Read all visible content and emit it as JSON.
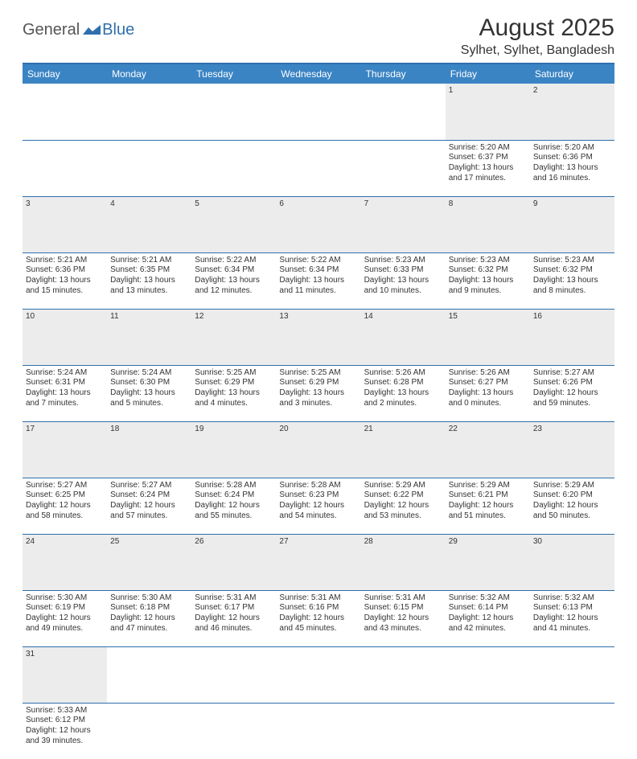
{
  "logo": {
    "part1": "General",
    "part2": "Blue"
  },
  "title": "August 2025",
  "location": "Sylhet, Sylhet, Bangladesh",
  "colors": {
    "header_bg": "#3b84c4",
    "accent_line": "#2f6fad",
    "daynum_bg": "#ececec",
    "text": "#333333"
  },
  "weekdays": [
    "Sunday",
    "Monday",
    "Tuesday",
    "Wednesday",
    "Thursday",
    "Friday",
    "Saturday"
  ],
  "weeks": [
    [
      null,
      null,
      null,
      null,
      null,
      {
        "d": "1",
        "sr": "Sunrise: 5:20 AM",
        "ss": "Sunset: 6:37 PM",
        "dl": "Daylight: 13 hours and 17 minutes."
      },
      {
        "d": "2",
        "sr": "Sunrise: 5:20 AM",
        "ss": "Sunset: 6:36 PM",
        "dl": "Daylight: 13 hours and 16 minutes."
      }
    ],
    [
      {
        "d": "3",
        "sr": "Sunrise: 5:21 AM",
        "ss": "Sunset: 6:36 PM",
        "dl": "Daylight: 13 hours and 15 minutes."
      },
      {
        "d": "4",
        "sr": "Sunrise: 5:21 AM",
        "ss": "Sunset: 6:35 PM",
        "dl": "Daylight: 13 hours and 13 minutes."
      },
      {
        "d": "5",
        "sr": "Sunrise: 5:22 AM",
        "ss": "Sunset: 6:34 PM",
        "dl": "Daylight: 13 hours and 12 minutes."
      },
      {
        "d": "6",
        "sr": "Sunrise: 5:22 AM",
        "ss": "Sunset: 6:34 PM",
        "dl": "Daylight: 13 hours and 11 minutes."
      },
      {
        "d": "7",
        "sr": "Sunrise: 5:23 AM",
        "ss": "Sunset: 6:33 PM",
        "dl": "Daylight: 13 hours and 10 minutes."
      },
      {
        "d": "8",
        "sr": "Sunrise: 5:23 AM",
        "ss": "Sunset: 6:32 PM",
        "dl": "Daylight: 13 hours and 9 minutes."
      },
      {
        "d": "9",
        "sr": "Sunrise: 5:23 AM",
        "ss": "Sunset: 6:32 PM",
        "dl": "Daylight: 13 hours and 8 minutes."
      }
    ],
    [
      {
        "d": "10",
        "sr": "Sunrise: 5:24 AM",
        "ss": "Sunset: 6:31 PM",
        "dl": "Daylight: 13 hours and 7 minutes."
      },
      {
        "d": "11",
        "sr": "Sunrise: 5:24 AM",
        "ss": "Sunset: 6:30 PM",
        "dl": "Daylight: 13 hours and 5 minutes."
      },
      {
        "d": "12",
        "sr": "Sunrise: 5:25 AM",
        "ss": "Sunset: 6:29 PM",
        "dl": "Daylight: 13 hours and 4 minutes."
      },
      {
        "d": "13",
        "sr": "Sunrise: 5:25 AM",
        "ss": "Sunset: 6:29 PM",
        "dl": "Daylight: 13 hours and 3 minutes."
      },
      {
        "d": "14",
        "sr": "Sunrise: 5:26 AM",
        "ss": "Sunset: 6:28 PM",
        "dl": "Daylight: 13 hours and 2 minutes."
      },
      {
        "d": "15",
        "sr": "Sunrise: 5:26 AM",
        "ss": "Sunset: 6:27 PM",
        "dl": "Daylight: 13 hours and 0 minutes."
      },
      {
        "d": "16",
        "sr": "Sunrise: 5:27 AM",
        "ss": "Sunset: 6:26 PM",
        "dl": "Daylight: 12 hours and 59 minutes."
      }
    ],
    [
      {
        "d": "17",
        "sr": "Sunrise: 5:27 AM",
        "ss": "Sunset: 6:25 PM",
        "dl": "Daylight: 12 hours and 58 minutes."
      },
      {
        "d": "18",
        "sr": "Sunrise: 5:27 AM",
        "ss": "Sunset: 6:24 PM",
        "dl": "Daylight: 12 hours and 57 minutes."
      },
      {
        "d": "19",
        "sr": "Sunrise: 5:28 AM",
        "ss": "Sunset: 6:24 PM",
        "dl": "Daylight: 12 hours and 55 minutes."
      },
      {
        "d": "20",
        "sr": "Sunrise: 5:28 AM",
        "ss": "Sunset: 6:23 PM",
        "dl": "Daylight: 12 hours and 54 minutes."
      },
      {
        "d": "21",
        "sr": "Sunrise: 5:29 AM",
        "ss": "Sunset: 6:22 PM",
        "dl": "Daylight: 12 hours and 53 minutes."
      },
      {
        "d": "22",
        "sr": "Sunrise: 5:29 AM",
        "ss": "Sunset: 6:21 PM",
        "dl": "Daylight: 12 hours and 51 minutes."
      },
      {
        "d": "23",
        "sr": "Sunrise: 5:29 AM",
        "ss": "Sunset: 6:20 PM",
        "dl": "Daylight: 12 hours and 50 minutes."
      }
    ],
    [
      {
        "d": "24",
        "sr": "Sunrise: 5:30 AM",
        "ss": "Sunset: 6:19 PM",
        "dl": "Daylight: 12 hours and 49 minutes."
      },
      {
        "d": "25",
        "sr": "Sunrise: 5:30 AM",
        "ss": "Sunset: 6:18 PM",
        "dl": "Daylight: 12 hours and 47 minutes."
      },
      {
        "d": "26",
        "sr": "Sunrise: 5:31 AM",
        "ss": "Sunset: 6:17 PM",
        "dl": "Daylight: 12 hours and 46 minutes."
      },
      {
        "d": "27",
        "sr": "Sunrise: 5:31 AM",
        "ss": "Sunset: 6:16 PM",
        "dl": "Daylight: 12 hours and 45 minutes."
      },
      {
        "d": "28",
        "sr": "Sunrise: 5:31 AM",
        "ss": "Sunset: 6:15 PM",
        "dl": "Daylight: 12 hours and 43 minutes."
      },
      {
        "d": "29",
        "sr": "Sunrise: 5:32 AM",
        "ss": "Sunset: 6:14 PM",
        "dl": "Daylight: 12 hours and 42 minutes."
      },
      {
        "d": "30",
        "sr": "Sunrise: 5:32 AM",
        "ss": "Sunset: 6:13 PM",
        "dl": "Daylight: 12 hours and 41 minutes."
      }
    ],
    [
      {
        "d": "31",
        "sr": "Sunrise: 5:33 AM",
        "ss": "Sunset: 6:12 PM",
        "dl": "Daylight: 12 hours and 39 minutes."
      },
      null,
      null,
      null,
      null,
      null,
      null
    ]
  ]
}
